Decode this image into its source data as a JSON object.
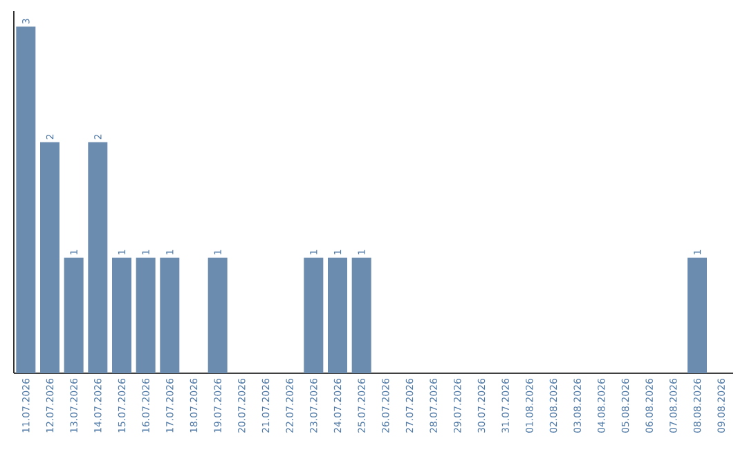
{
  "chart_data": {
    "type": "bar",
    "categories": [
      "11.07.2026",
      "12.07.2026",
      "13.07.2026",
      "14.07.2026",
      "15.07.2026",
      "16.07.2026",
      "17.07.2026",
      "18.07.2026",
      "19.07.2026",
      "20.07.2026",
      "21.07.2026",
      "22.07.2026",
      "23.07.2026",
      "24.07.2026",
      "25.07.2026",
      "26.07.2026",
      "27.07.2026",
      "28.07.2026",
      "29.07.2026",
      "30.07.2026",
      "31.07.2026",
      "01.08.2026",
      "02.08.2026",
      "03.08.2026",
      "04.08.2026",
      "05.08.2026",
      "06.08.2026",
      "07.08.2026",
      "08.08.2026",
      "09.08.2026"
    ],
    "values": [
      3,
      2,
      1,
      2,
      1,
      1,
      1,
      0,
      1,
      0,
      0,
      0,
      1,
      1,
      1,
      0,
      0,
      0,
      0,
      0,
      0,
      0,
      0,
      0,
      0,
      0,
      0,
      0,
      1,
      0
    ],
    "value_labels": [
      "3",
      "2",
      "1",
      "2",
      "1",
      "1",
      "1",
      null,
      "1",
      null,
      null,
      null,
      "1",
      "1",
      "1",
      null,
      null,
      null,
      null,
      null,
      null,
      null,
      null,
      null,
      null,
      null,
      null,
      null,
      "1",
      null
    ],
    "color": "#6b8cae",
    "grid": false,
    "tick_labels": "x"
  }
}
